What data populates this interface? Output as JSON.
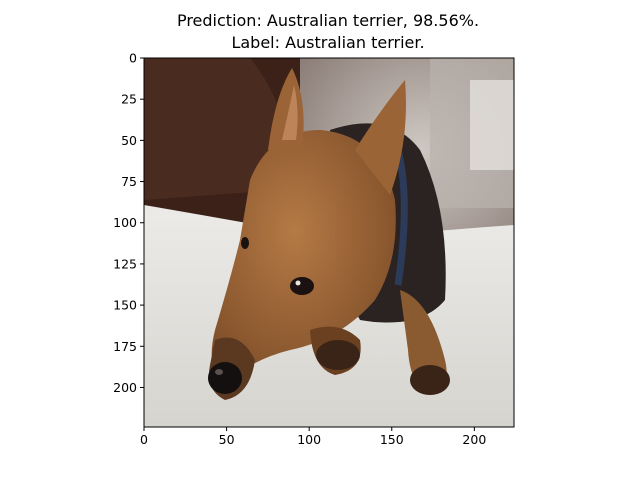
{
  "chart_data": {
    "type": "image",
    "title_lines": [
      "Prediction: Australian terrier, 98.56%.",
      "Label: Australian terrier."
    ],
    "image_subject": "Australian terrier",
    "image_size": [
      224,
      224
    ],
    "xlim": [
      0,
      224
    ],
    "ylim": [
      224,
      0
    ],
    "x_ticks": [
      0,
      50,
      100,
      150,
      200
    ],
    "y_ticks": [
      0,
      25,
      50,
      75,
      100,
      125,
      150,
      175,
      200
    ],
    "x_tick_labels": [
      "0",
      "50",
      "100",
      "150",
      "200"
    ],
    "y_tick_labels": [
      "0",
      "25",
      "50",
      "75",
      "100",
      "125",
      "150",
      "175",
      "200"
    ]
  }
}
